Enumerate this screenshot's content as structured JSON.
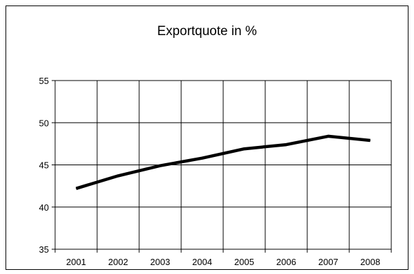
{
  "chart_data": {
    "type": "line",
    "title": "Exportquote in %",
    "xlabel": "",
    "ylabel": "",
    "categories": [
      "2001",
      "2002",
      "2003",
      "2004",
      "2005",
      "2006",
      "2007",
      "2008"
    ],
    "series": [
      {
        "values": [
          42.2,
          43.7,
          44.9,
          45.8,
          46.9,
          47.4,
          48.4,
          47.9
        ]
      }
    ],
    "ylim": [
      35,
      55
    ],
    "yticks": [
      35,
      40,
      45,
      50,
      55
    ],
    "grid": true,
    "legend": "none",
    "line_color": "#000000"
  }
}
